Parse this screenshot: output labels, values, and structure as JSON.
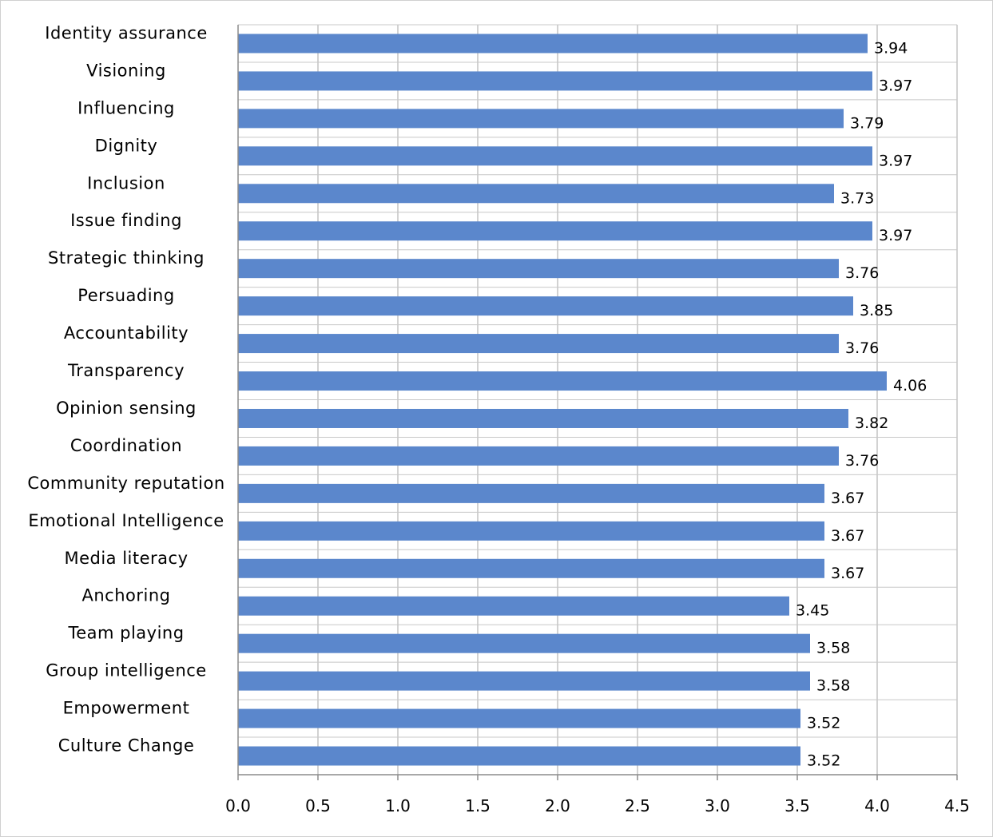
{
  "chart_data": {
    "type": "bar",
    "orientation": "horizontal",
    "categories": [
      "Identity assurance",
      "Visioning",
      "Influencing",
      "Dignity",
      "Inclusion",
      "Issue finding",
      "Strategic thinking",
      "Persuading",
      "Accountability",
      "Transparency",
      "Opinion sensing",
      "Coordination",
      "Community reputation",
      "Emotional Intelligence",
      "Media literacy",
      "Anchoring",
      "Team playing",
      "Group intelligence",
      "Empowerment",
      "Culture Change"
    ],
    "values": [
      3.94,
      3.97,
      3.79,
      3.97,
      3.73,
      3.97,
      3.76,
      3.85,
      3.76,
      4.06,
      3.82,
      3.76,
      3.67,
      3.67,
      3.67,
      3.45,
      3.58,
      3.58,
      3.52,
      3.52
    ],
    "value_labels": [
      "3.94",
      "3.97",
      "3.79",
      "3.97",
      "3.73",
      "3.97",
      "3.76",
      "3.85",
      "3.76",
      "4.06",
      "3.82",
      "3.76",
      "3.67",
      "3.67",
      "3.67",
      "3.45",
      "3.58",
      "3.58",
      "3.52",
      "3.52"
    ],
    "xticks": [
      "0.0",
      "0.5",
      "1.0",
      "1.5",
      "2.0",
      "2.5",
      "3.0",
      "3.5",
      "4.0",
      "4.5"
    ],
    "xlim": [
      0,
      4.5
    ],
    "title": "",
    "xlabel": "",
    "ylabel": "",
    "grid": "vertical",
    "legend": "none",
    "bar_color": "#5b87cc",
    "grid_color": "#a6a6a6"
  }
}
